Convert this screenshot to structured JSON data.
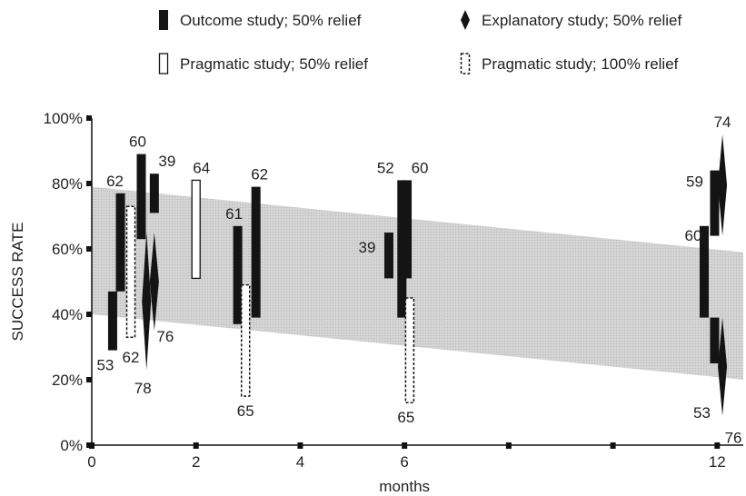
{
  "chart_data": {
    "type": "range",
    "title": "",
    "xlabel": "months",
    "ylabel": "SUCCESS RATE",
    "xlim": [
      0,
      12.5
    ],
    "ylim": [
      0,
      100
    ],
    "x_ticks": [
      0,
      2,
      4,
      6,
      12
    ],
    "x_tick_marks": [
      0,
      2,
      4,
      6,
      8,
      10,
      12
    ],
    "y_ticks": [
      0,
      20,
      40,
      60,
      80,
      100
    ],
    "y_tick_labels": [
      "0%",
      "20%",
      "40%",
      "60%",
      "80%",
      "100%"
    ],
    "grid": false,
    "legend_position": "top",
    "legend": [
      {
        "key": "outcome",
        "label": "Outcome study; 50% relief"
      },
      {
        "key": "explanatory",
        "label": "Explanatory study; 50% relief"
      },
      {
        "key": "pragmatic50",
        "label": "Pragmatic study; 50% relief"
      },
      {
        "key": "pragmatic100",
        "label": "Pragmatic study; 100% relief"
      }
    ],
    "band": {
      "x": [
        0,
        12.5
      ],
      "lower": [
        40,
        20
      ],
      "upper": [
        79,
        59
      ]
    },
    "series": [
      {
        "type": "outcome",
        "x": 0.4,
        "low": 29,
        "high": 47,
        "label": "53",
        "label_side": "below"
      },
      {
        "type": "outcome",
        "x": 0.55,
        "low": 47,
        "high": 77,
        "label": "62",
        "label_side": "above"
      },
      {
        "type": "pragmatic100",
        "x": 0.75,
        "low": 33,
        "high": 73,
        "label": "62",
        "label_side": "below"
      },
      {
        "type": "outcome",
        "x": 0.95,
        "low": 63,
        "high": 89,
        "label": "60",
        "label_side": "above"
      },
      {
        "type": "explanatory",
        "x": 1.05,
        "low": 23,
        "high": 65,
        "label": "78",
        "label_side": "below"
      },
      {
        "type": "explanatory",
        "x": 1.2,
        "low": 35,
        "high": 65,
        "label": "76",
        "label_side": "below"
      },
      {
        "type": "outcome",
        "x": 1.2,
        "low": 71,
        "high": 83,
        "label": "39",
        "label_side": "above"
      },
      {
        "type": "pragmatic50",
        "x": 2.0,
        "low": 51,
        "high": 81,
        "label": "64",
        "label_side": "above"
      },
      {
        "type": "outcome",
        "x": 2.8,
        "low": 37,
        "high": 67,
        "label": "61",
        "label_side": "above"
      },
      {
        "type": "pragmatic100",
        "x": 2.95,
        "low": 15,
        "high": 49,
        "label": "65",
        "label_side": "below"
      },
      {
        "type": "outcome",
        "x": 3.15,
        "low": 39,
        "high": 79,
        "label": "62",
        "label_side": "above"
      },
      {
        "type": "outcome",
        "x": 5.7,
        "low": 51,
        "high": 65,
        "label": "39",
        "label_side": "above"
      },
      {
        "type": "outcome",
        "x": 5.95,
        "low": 39,
        "high": 81,
        "label": "52",
        "label_side": "above"
      },
      {
        "type": "outcome",
        "x": 6.05,
        "low": 51,
        "high": 81,
        "label": "60",
        "label_side": "above"
      },
      {
        "type": "pragmatic100",
        "x": 6.1,
        "low": 13,
        "high": 45,
        "label": "65",
        "label_side": "below"
      },
      {
        "type": "outcome",
        "x": 11.75,
        "low": 39,
        "high": 67,
        "label": "60",
        "label_side": "above"
      },
      {
        "type": "outcome",
        "x": 11.95,
        "low": 64,
        "high": 84,
        "label": "59",
        "label_side": "above"
      },
      {
        "type": "outcome",
        "x": 11.95,
        "low": 25,
        "high": 39,
        "label": "53",
        "label_side": "below"
      },
      {
        "type": "explanatory",
        "x": 12.1,
        "low": 64,
        "high": 95,
        "label": "74",
        "label_side": "above"
      },
      {
        "type": "explanatory",
        "x": 12.1,
        "low": 9,
        "high": 39,
        "label": "76",
        "label_side": "below"
      }
    ]
  }
}
